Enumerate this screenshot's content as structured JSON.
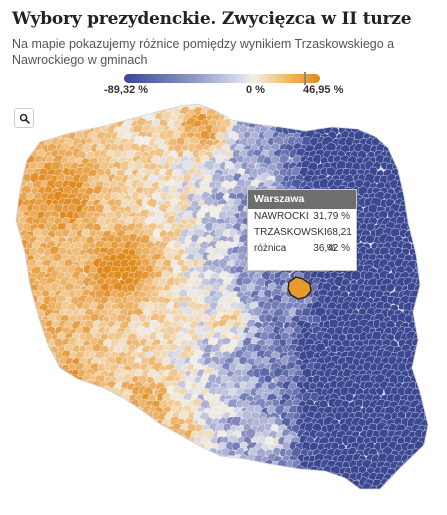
{
  "header": {
    "title": "Wybory prezydenckie. Zwycięzca w II turze",
    "subtitle": "Na mapie pokazujemy różnice pomiędzy wynikiem Trzaskowskiego a Nawrockiego w gminach"
  },
  "legend": {
    "min_label": "-89,32 %",
    "mid_label": "0 %",
    "max_label": "46,95 %",
    "min_value": -89.32,
    "max_value": 46.95,
    "marker_value": 36.42,
    "colors": {
      "negative": "#3a4791",
      "neutral": "#f0efea",
      "positive": "#e0891c"
    }
  },
  "controls": {
    "search_icon": "search-icon"
  },
  "tooltip": {
    "title": "Warszawa",
    "rows": [
      {
        "label": "NAWROCKI",
        "value": "31,79 %"
      },
      {
        "label": "TRZASKOWSKI",
        "value": "68,21 %"
      },
      {
        "label": "różnica",
        "value": "36,42 %"
      }
    ]
  },
  "highlight": {
    "region": "Warszawa",
    "outline_color": "#222222",
    "fill_color": "#e79a2e"
  }
}
